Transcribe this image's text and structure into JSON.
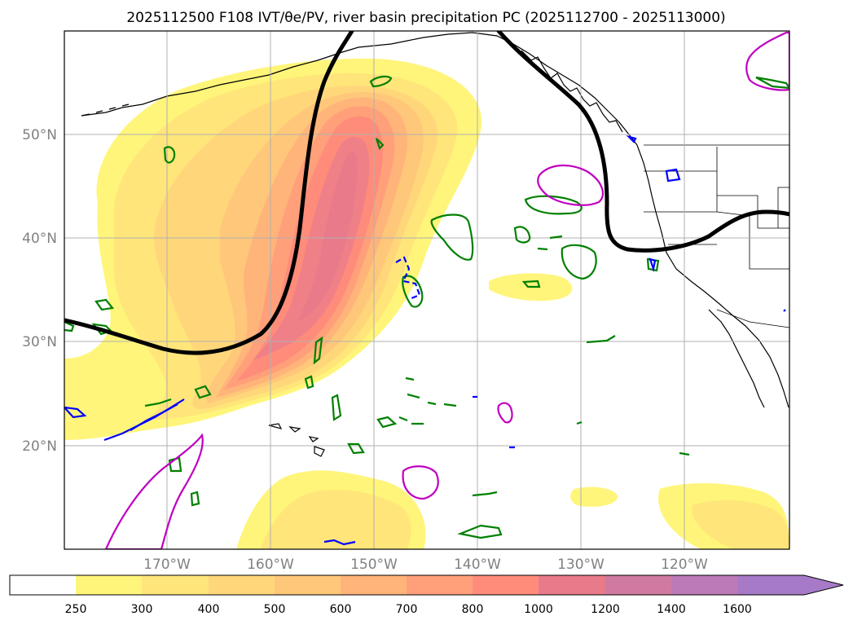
{
  "title": "2025112500 F108 IVT/θe/PV, river basin precipitation PC (2025112700 - 2025113000)",
  "map": {
    "lon_range": [
      -180,
      -110
    ],
    "lat_range": [
      10,
      60
    ],
    "lon_ticks": [
      {
        "value": -170,
        "label": "170°W"
      },
      {
        "value": -160,
        "label": "160°W"
      },
      {
        "value": -150,
        "label": "150°W"
      },
      {
        "value": -140,
        "label": "140°W"
      },
      {
        "value": -130,
        "label": "130°W"
      },
      {
        "value": -120,
        "label": "120°W"
      }
    ],
    "lat_ticks": [
      {
        "value": 20,
        "label": "20°N"
      },
      {
        "value": 30,
        "label": "30°N"
      },
      {
        "value": 40,
        "label": "40°N"
      },
      {
        "value": 50,
        "label": "50°N"
      }
    ],
    "grid": true,
    "colors": {
      "theta_e_contour": "#000000",
      "pv_contour": "#008000",
      "precip_neg_contour": "#0000ff",
      "precip_pos_contour": "#c000c0",
      "coastline": "#000000",
      "gridline": "#b0b0b0"
    }
  },
  "colorbar": {
    "levels": [
      "250",
      "300",
      "400",
      "500",
      "600",
      "700",
      "800",
      "1000",
      "1200",
      "1400",
      "1600"
    ],
    "colors": [
      "#ffffff",
      "#fff57a",
      "#ffe57a",
      "#ffd77a",
      "#ffc77a",
      "#ffb47a",
      "#ffa07a",
      "#ff8c7a",
      "#e87a8a",
      "#d07aa0",
      "#bd7ab8",
      "#a77ac8"
    ],
    "extend": "max"
  }
}
